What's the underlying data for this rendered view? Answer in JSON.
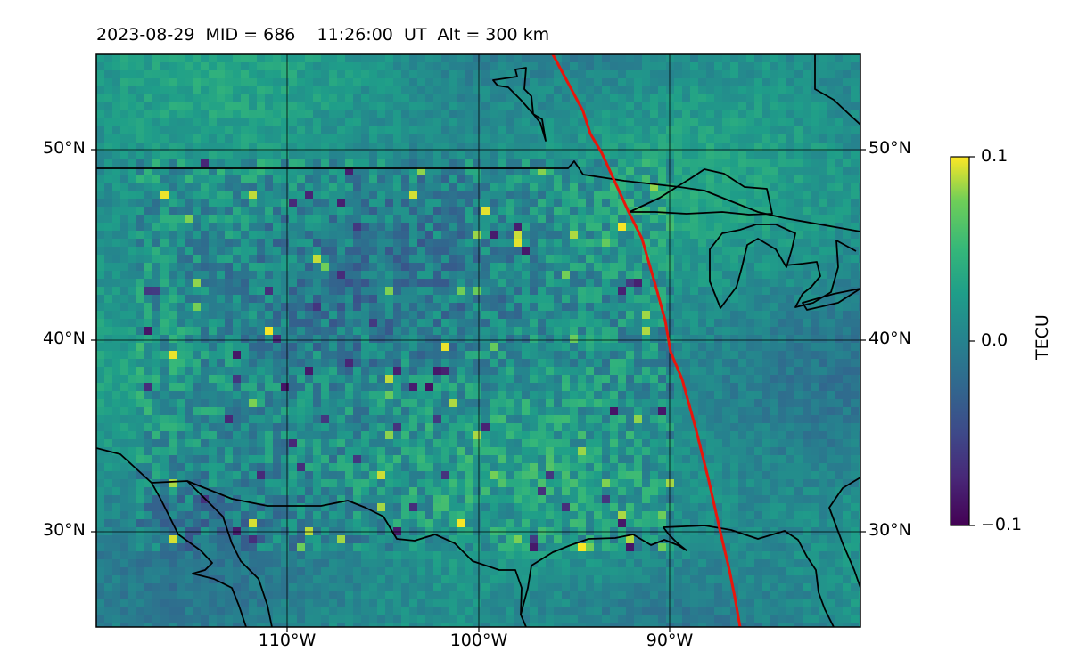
{
  "title": "2023-08-29  MID = 686    11:26:00  UT  Alt = 300 km",
  "map": {
    "lon_range": [
      -120,
      -80
    ],
    "lat_range": [
      25,
      55
    ],
    "lat_ticks": [
      {
        "value": 50,
        "label": "50°N"
      },
      {
        "value": 40,
        "label": "40°N"
      },
      {
        "value": 30,
        "label": "30°N"
      }
    ],
    "lon_ticks": [
      {
        "value": -110,
        "label": "110°W"
      },
      {
        "value": -100,
        "label": "100°W"
      },
      {
        "value": -90,
        "label": "90°W"
      }
    ],
    "terminator_color": "#e8160c",
    "coastline_color": "#000000",
    "grid": true
  },
  "colorbar": {
    "label": "TECU",
    "min": -0.1,
    "max": 0.1,
    "colormap": "viridis",
    "ticks": [
      {
        "value": 0.1,
        "label": "0.1"
      },
      {
        "value": 0.0,
        "label": "0.0"
      },
      {
        "value": -0.1,
        "label": "−0.1"
      }
    ]
  }
}
